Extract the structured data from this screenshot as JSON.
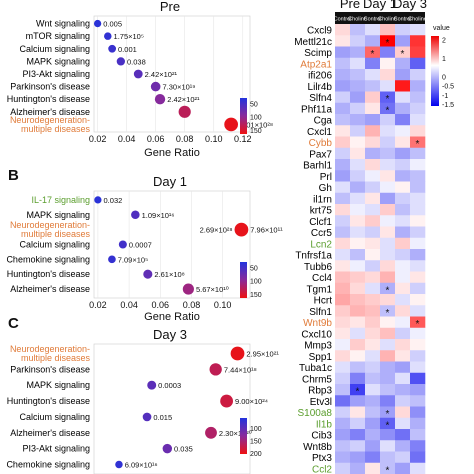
{
  "chart_data": [
    {
      "type": "scatter",
      "panel_letter": "",
      "title": "Pre",
      "xlabel": "Gene Ratio",
      "xlim": [
        0.0175,
        0.125
      ],
      "x_ticks": [
        "0.02",
        "0.04",
        "0.06",
        "0.08",
        "0.10",
        "0.12"
      ],
      "x_tick_values": [
        0.02,
        0.04,
        0.06,
        0.08,
        0.1,
        0.12
      ],
      "legend_ticks": [
        "50",
        "100",
        "150"
      ],
      "legend_tick_values": [
        50,
        100,
        150
      ],
      "count_range": [
        30,
        165
      ],
      "points": [
        {
          "label": "Wnt signaling",
          "x": 0.02,
          "count": 35,
          "value": "0.005",
          "label_color": "#000000"
        },
        {
          "label": "mTOR signaling",
          "x": 0.027,
          "count": 40,
          "value": "1.75×10⁵",
          "label_color": "#000000"
        },
        {
          "label": "Calcium signaling",
          "x": 0.03,
          "count": 45,
          "value": "0.001",
          "label_color": "#000000"
        },
        {
          "label": "MAPK signaling",
          "x": 0.036,
          "count": 55,
          "value": "0.038",
          "label_color": "#000000"
        },
        {
          "label": "PI3-Akt signaling",
          "x": 0.048,
          "count": 65,
          "value": "2.42×10²¹",
          "label_color": "#000000"
        },
        {
          "label": "Parkinson's disease",
          "x": 0.06,
          "count": 80,
          "value": "7.30×10¹⁹",
          "label_color": "#000000"
        },
        {
          "label": "Huntington's disease",
          "x": 0.063,
          "count": 95,
          "value": "2.42×10²¹",
          "label_color": "#000000"
        },
        {
          "label": "Alzheimer's disease",
          "x": 0.08,
          "count": 130,
          "value": "",
          "label_color": "#000000"
        },
        {
          "label": "Neurodegeneration-\nmultiple diseases",
          "x": 0.112,
          "count": 160,
          "value": "3.01×10²⁸",
          "label_color": "#e07b39"
        }
      ]
    },
    {
      "type": "scatter",
      "panel_letter": "B",
      "title": "Day 1",
      "xlabel": "Gene Ratio",
      "xlim": [
        0.0175,
        0.1175
      ],
      "x_ticks": [
        "0.02",
        "0.04",
        "0.06",
        "0.08",
        "0.10"
      ],
      "x_tick_values": [
        0.02,
        0.04,
        0.06,
        0.08,
        0.1
      ],
      "legend_ticks": [
        "50",
        "100",
        "150"
      ],
      "legend_tick_values": [
        50,
        100,
        150
      ],
      "count_range": [
        30,
        165
      ],
      "points": [
        {
          "label": "IL-17 signaling",
          "x": 0.02,
          "count": 35,
          "value": "0.032",
          "label_color": "#5b9e2e"
        },
        {
          "label": "MAPK signaling",
          "x": 0.044,
          "count": 60,
          "value": "1.09×10¹⁶",
          "label_color": "#000000"
        },
        {
          "label": "Neurodegeneration-\nmultiple diseases",
          "x": 0.112,
          "count": 160,
          "value": "7.96×10¹¹",
          "label_color": "#e07b39"
        },
        {
          "label": "Calcium signaling",
          "x": 0.036,
          "count": 50,
          "value": "0.0007",
          "label_color": "#000000"
        },
        {
          "label": "Chemokine signaling",
          "x": 0.029,
          "count": 42,
          "value": "7.09×10⁵",
          "label_color": "#000000"
        },
        {
          "label": "Huntington's disease",
          "x": 0.052,
          "count": 70,
          "value": "2.61×10⁸",
          "label_color": "#000000"
        },
        {
          "label": "Alzheimer's disease",
          "x": 0.078,
          "count": 110,
          "value": "5.67×10¹⁰",
          "label_color": "#000000"
        }
      ],
      "extra_values": [
        {
          "index": 2,
          "value": "2.69×10²⁸",
          "placement": "left"
        }
      ]
    },
    {
      "type": "scatter",
      "panel_letter": "C",
      "title": "Day 3",
      "xlabel": "",
      "xlim": [
        0.02,
        0.12
      ],
      "x_ticks": [],
      "x_tick_values": [],
      "legend_ticks": [
        "100",
        "150",
        "200"
      ],
      "legend_tick_values": [
        100,
        150,
        200
      ],
      "count_range": [
        60,
        205
      ],
      "points": [
        {
          "label": "Neurodegeneration-\nmultiple diseases",
          "x": 0.112,
          "count": 200,
          "value": "2.95×10²¹",
          "label_color": "#e07b39"
        },
        {
          "label": "Parkinson's disease",
          "x": 0.098,
          "count": 170,
          "value": "7.44×10¹⁸",
          "label_color": "#000000"
        },
        {
          "label": "MAPK signaling",
          "x": 0.057,
          "count": 100,
          "value": "0.0003",
          "label_color": "#000000"
        },
        {
          "label": "Huntington's disease",
          "x": 0.105,
          "count": 180,
          "value": "9.00×10²⁴",
          "label_color": "#000000"
        },
        {
          "label": "Calcium signaling",
          "x": 0.054,
          "count": 95,
          "value": "0.015",
          "label_color": "#000000"
        },
        {
          "label": "Alzheimer's disease",
          "x": 0.095,
          "count": 160,
          "value": "2.30×10²⁰",
          "label_color": "#000000"
        },
        {
          "label": "PI3-Akt signaling",
          "x": 0.067,
          "count": 110,
          "value": "0.035",
          "label_color": "#000000"
        },
        {
          "label": "Chemokine signaling",
          "x": 0.036,
          "count": 70,
          "value": "6.09×10¹⁶",
          "label_color": "#000000"
        }
      ]
    },
    {
      "type": "heatmap",
      "group_labels": [
        "Pre",
        "Day 1",
        "Day 3"
      ],
      "column_labels": [
        "Control",
        "Choline",
        "Control",
        "Choline",
        "Control",
        "Choline"
      ],
      "legend_title": "value",
      "legend_ticks": [
        "2",
        "1",
        "0",
        "-0.5",
        "-1",
        "-1.5"
      ],
      "legend_tick_values": [
        2,
        1,
        0,
        -0.5,
        -1,
        -1.5
      ],
      "value_range": [
        -1.6,
        2.2
      ],
      "row_labels": [
        "Cxcl9",
        "Mettl21c",
        "Scimp",
        "Atp2a1",
        "ifi206",
        "Lilr4b",
        "Slfn4",
        "Phf11a",
        "Cga",
        "Cxcl1",
        "Cybb",
        "Pax7",
        "Barhl1",
        "Prl",
        "Gh",
        "il1rn",
        "krt75",
        "Clcf1",
        "Ccr5",
        "Lcn2",
        "Tnfrsf1a",
        "Tubb6",
        "Ccl4",
        "Tgm1",
        "Hcrt",
        "Slfn1",
        "Wnt9b",
        "Cxcl10",
        "Mmp3",
        "Spp1",
        "Tuba1c",
        "Chrm5",
        "Rbp3",
        "Etv3l",
        "S100a8",
        "Il1b",
        "Cib3",
        "Wnt8b",
        "Ptx3",
        "Ccl2"
      ],
      "row_label_colors": [
        "#000000",
        "#000000",
        "#000000",
        "#e07b39",
        "#000000",
        "#000000",
        "#000000",
        "#000000",
        "#000000",
        "#000000",
        "#e07b39",
        "#000000",
        "#000000",
        "#000000",
        "#000000",
        "#000000",
        "#000000",
        "#000000",
        "#000000",
        "#5b9e2e",
        "#000000",
        "#000000",
        "#000000",
        "#000000",
        "#000000",
        "#000000",
        "#e07b39",
        "#000000",
        "#000000",
        "#000000",
        "#000000",
        "#000000",
        "#000000",
        "#000000",
        "#5b9e2e",
        "#5b9e2e",
        "#000000",
        "#000000",
        "#000000",
        "#5b9e2e"
      ],
      "values": [
        [
          0.3,
          -0.4,
          -0.2,
          0.5,
          -0.3,
          -0.2
        ],
        [
          0.2,
          -0.3,
          -0.5,
          2.0,
          -0.6,
          1.6
        ],
        [
          -0.6,
          -0.5,
          1.2,
          -0.8,
          0.4,
          1.5
        ],
        [
          -0.4,
          -0.2,
          -0.8,
          0.1,
          -0.5,
          -1.0
        ],
        [
          -0.5,
          -0.4,
          -0.2,
          0.3,
          -0.6,
          -0.3
        ],
        [
          -0.6,
          -0.5,
          -0.4,
          -0.2,
          1.8,
          -0.5
        ],
        [
          -0.3,
          -0.6,
          0.4,
          -1.0,
          -0.2,
          -0.4
        ],
        [
          -0.5,
          -0.3,
          0.2,
          -0.9,
          -0.5,
          -0.3
        ],
        [
          -0.4,
          -0.5,
          -0.6,
          -0.3,
          -0.8,
          -0.2
        ],
        [
          0.2,
          -0.3,
          0.6,
          -0.2,
          -0.1,
          0.3
        ],
        [
          0.4,
          0.1,
          0.3,
          -0.3,
          0.2,
          1.1
        ],
        [
          -0.3,
          0.2,
          -0.5,
          -0.4,
          -0.6,
          -0.4
        ],
        [
          -0.5,
          -0.2,
          0.3,
          -0.2,
          -0.3,
          -0.1
        ],
        [
          -0.6,
          -0.3,
          -0.1,
          0.2,
          -0.5,
          -0.4
        ],
        [
          -0.2,
          -0.5,
          -0.3,
          -0.1,
          0.1,
          -0.4
        ],
        [
          -0.4,
          -0.2,
          0.2,
          -0.6,
          -0.3,
          -0.2
        ],
        [
          0.3,
          -0.1,
          -0.2,
          0.4,
          -0.4,
          -0.2
        ],
        [
          -0.3,
          0.2,
          0.4,
          -0.1,
          -0.2,
          0.1
        ],
        [
          -0.4,
          -0.2,
          -0.3,
          0.2,
          -0.5,
          -0.3
        ],
        [
          0.3,
          0.1,
          0.2,
          -0.2,
          0.4,
          -0.1
        ],
        [
          -0.2,
          -0.4,
          0.1,
          -0.2,
          -0.3,
          -0.5
        ],
        [
          0.2,
          -0.1,
          -0.3,
          0.3,
          -0.1,
          -0.2
        ],
        [
          0.5,
          0.4,
          0.3,
          0.6,
          -0.1,
          0.2
        ],
        [
          0.6,
          0.3,
          -0.2,
          -0.5,
          0.2,
          -0.3
        ],
        [
          0.7,
          0.5,
          0.4,
          0.3,
          -0.2,
          0.1
        ],
        [
          0.4,
          0.6,
          0.5,
          -0.4,
          0.3,
          -0.2
        ],
        [
          0.3,
          0.2,
          0.4,
          0.1,
          -0.1,
          1.3
        ],
        [
          0.2,
          -0.2,
          0.3,
          0.5,
          -0.3,
          -0.1
        ],
        [
          -0.1,
          0.4,
          0.2,
          -0.2,
          0.3,
          0.1
        ],
        [
          0.3,
          0.1,
          -0.2,
          0.6,
          0.2,
          -0.3
        ],
        [
          -0.2,
          -0.4,
          -0.3,
          -0.5,
          -0.6,
          -0.2
        ],
        [
          -0.3,
          -0.8,
          -0.4,
          -0.5,
          -0.2,
          -1.1
        ],
        [
          -0.4,
          -1.2,
          -0.2,
          -0.4,
          -0.5,
          -0.6
        ],
        [
          -0.9,
          -0.6,
          -0.5,
          -0.8,
          -0.3,
          -0.4
        ],
        [
          -0.3,
          0.2,
          -0.4,
          -0.6,
          0.3,
          -0.7
        ],
        [
          -0.5,
          -0.3,
          -0.6,
          -1.0,
          -0.2,
          -0.5
        ],
        [
          -0.6,
          -0.8,
          -0.5,
          -0.7,
          -0.9,
          -0.4
        ],
        [
          -0.4,
          -0.3,
          -0.6,
          -0.2,
          -0.5,
          -0.8
        ],
        [
          -0.5,
          -0.6,
          -0.8,
          -0.4,
          -0.3,
          -0.9
        ],
        [
          -0.3,
          -0.5,
          0.2,
          -0.4,
          -0.6,
          -0.2
        ]
      ],
      "star_symbol": "*",
      "stars": [
        [
          1,
          3
        ],
        [
          2,
          2
        ],
        [
          2,
          4
        ],
        [
          6,
          3
        ],
        [
          7,
          3
        ],
        [
          10,
          5
        ],
        [
          23,
          3
        ],
        [
          25,
          3
        ],
        [
          26,
          5
        ],
        [
          32,
          1
        ],
        [
          34,
          3
        ],
        [
          35,
          3
        ],
        [
          39,
          3
        ]
      ]
    }
  ]
}
